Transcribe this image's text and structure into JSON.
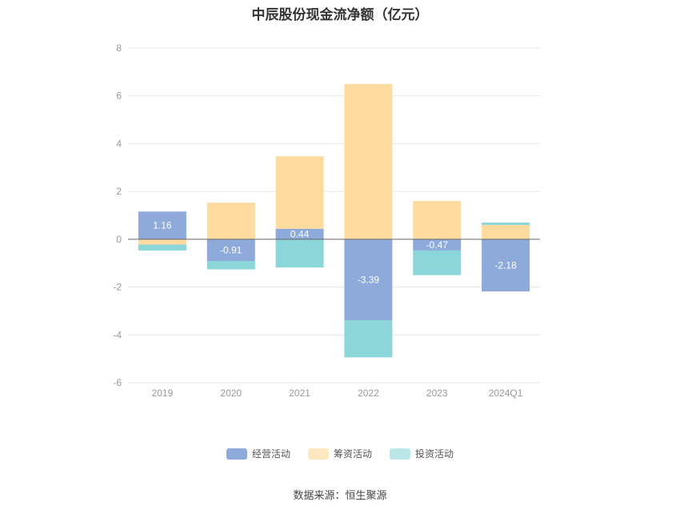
{
  "title": "中辰股份现金流净额（亿元）",
  "source": "数据来源：恒生聚源",
  "chart_data": {
    "type": "bar",
    "stacked": true,
    "categories": [
      "2019",
      "2020",
      "2021",
      "2022",
      "2023",
      "2024Q1"
    ],
    "ylim": [
      -6,
      8
    ],
    "yticks": [
      -6,
      -4,
      -2,
      0,
      2,
      4,
      6,
      8
    ],
    "grid": true,
    "legend_position": "bottom",
    "series": [
      {
        "name": "经营活动",
        "color": "#8eaadb",
        "values": [
          1.16,
          -0.91,
          0.44,
          -3.39,
          -0.47,
          -2.18
        ],
        "labels": [
          "1.16",
          "-0.91",
          "0.44",
          "-3.39",
          "-0.47",
          "-2.18"
        ]
      },
      {
        "name": "筹资活动",
        "color": "#ffdba0",
        "values": [
          -0.22,
          1.53,
          3.03,
          6.5,
          1.6,
          0.6
        ]
      },
      {
        "name": "投资活动",
        "color": "#8ad6d9",
        "values": [
          -0.25,
          -0.35,
          -1.18,
          -1.55,
          -1.03,
          0.1
        ]
      }
    ]
  }
}
